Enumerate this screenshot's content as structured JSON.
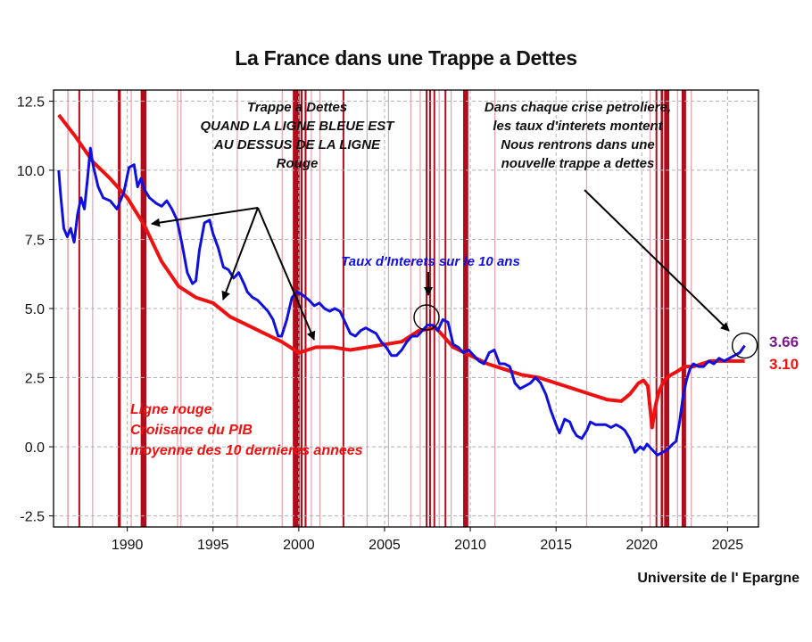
{
  "chart_data": {
    "type": "line",
    "title": "La France dans une Trappe a Dettes",
    "xlabel": "",
    "ylabel": "",
    "xlim": [
      1985.7,
      2026.8
    ],
    "ylim": [
      -2.9,
      12.9
    ],
    "xticks": [
      1990,
      1995,
      2000,
      2005,
      2010,
      2015,
      2020,
      2025
    ],
    "xtick_labels": [
      "1990",
      "1995",
      "2000",
      "2005",
      "2010",
      "2015",
      "2020",
      "2025"
    ],
    "yticks": [
      12.5,
      10.0,
      7.5,
      5.0,
      2.5,
      0.0,
      -2.5
    ],
    "ytick_labels": [
      "12.5",
      "10.0",
      "7.5",
      "5.0",
      "2.5",
      "0.0",
      "-2.5"
    ],
    "grid": true,
    "colors": {
      "interest": "#1010dd",
      "gdp": "#ee1111",
      "shade_dark": "#b00c1c",
      "shade_light": "#e8a0aa",
      "last_interest": "#7a1a8a"
    },
    "series": [
      {
        "name": "Taux d'Interets sur le 10 ans",
        "x": [
          1986.0,
          1986.1,
          1986.3,
          1986.5,
          1986.7,
          1986.9,
          1987.1,
          1987.3,
          1987.5,
          1987.7,
          1987.85,
          1988.0,
          1988.3,
          1988.6,
          1989.0,
          1989.4,
          1989.8,
          1990.1,
          1990.4,
          1990.6,
          1990.8,
          1991.0,
          1991.3,
          1991.7,
          1992.0,
          1992.3,
          1992.6,
          1992.9,
          1993.2,
          1993.5,
          1993.8,
          1994.0,
          1994.2,
          1994.5,
          1994.8,
          1995.0,
          1995.3,
          1995.6,
          1995.9,
          1996.2,
          1996.5,
          1996.8,
          1997.0,
          1997.3,
          1997.6,
          1997.9,
          1998.2,
          1998.5,
          1998.8,
          1999.0,
          1999.3,
          1999.6,
          1999.9,
          2000.2,
          2000.6,
          2000.9,
          2001.2,
          2001.5,
          2001.8,
          2002.1,
          2002.4,
          2002.7,
          2003.0,
          2003.3,
          2003.6,
          2003.9,
          2004.2,
          2004.5,
          2004.8,
          2005.1,
          2005.4,
          2005.7,
          2006.0,
          2006.3,
          2006.6,
          2006.9,
          2007.2,
          2007.5,
          2007.8,
          2008.1,
          2008.4,
          2008.7,
          2009.0,
          2009.3,
          2009.6,
          2009.9,
          2010.2,
          2010.5,
          2010.8,
          2011.1,
          2011.4,
          2011.7,
          2012.0,
          2012.3,
          2012.6,
          2012.9,
          2013.2,
          2013.5,
          2013.8,
          2014.1,
          2014.4,
          2014.7,
          2015.0,
          2015.2,
          2015.5,
          2015.8,
          2016.0,
          2016.2,
          2016.5,
          2016.8,
          2017.0,
          2017.3,
          2017.6,
          2017.9,
          2018.2,
          2018.5,
          2018.8,
          2019.0,
          2019.3,
          2019.6,
          2019.9,
          2020.1,
          2020.3,
          2020.6,
          2020.9,
          2021.2,
          2021.5,
          2021.8,
          2022.0,
          2022.2,
          2022.4,
          2022.6,
          2022.8,
          2023.0,
          2023.3,
          2023.6,
          2023.9,
          2024.2,
          2024.5,
          2024.8,
          2025.1,
          2025.4,
          2025.7,
          2026.0
        ],
        "y": [
          10.0,
          9.2,
          7.9,
          7.6,
          7.9,
          7.4,
          8.4,
          9.0,
          8.6,
          9.8,
          10.8,
          10.2,
          9.4,
          9.0,
          8.9,
          8.6,
          9.2,
          10.1,
          10.2,
          9.4,
          9.7,
          9.3,
          9.0,
          8.8,
          8.7,
          8.9,
          8.6,
          8.2,
          7.3,
          6.3,
          5.9,
          6.0,
          7.1,
          8.1,
          8.2,
          7.7,
          7.2,
          6.5,
          6.4,
          6.1,
          6.3,
          5.9,
          5.6,
          5.4,
          5.3,
          5.1,
          4.9,
          4.6,
          4.0,
          4.0,
          4.6,
          5.4,
          5.6,
          5.5,
          5.3,
          5.1,
          5.2,
          5.0,
          4.9,
          5.0,
          4.9,
          4.5,
          4.1,
          4.0,
          4.2,
          4.3,
          4.2,
          4.1,
          3.8,
          3.6,
          3.3,
          3.3,
          3.5,
          3.8,
          4.0,
          4.0,
          4.2,
          4.4,
          4.4,
          4.2,
          4.6,
          4.5,
          3.7,
          3.6,
          3.4,
          3.5,
          3.3,
          3.1,
          3.0,
          3.4,
          3.5,
          3.0,
          3.0,
          2.9,
          2.3,
          2.1,
          2.2,
          2.3,
          2.5,
          2.3,
          1.9,
          1.3,
          0.8,
          0.5,
          1.0,
          0.9,
          0.6,
          0.4,
          0.3,
          0.6,
          0.9,
          0.8,
          0.8,
          0.8,
          0.7,
          0.8,
          0.7,
          0.6,
          0.3,
          -0.2,
          0.0,
          -0.1,
          0.1,
          -0.1,
          -0.3,
          -0.2,
          -0.1,
          0.1,
          0.2,
          0.9,
          1.8,
          2.4,
          2.8,
          3.0,
          2.9,
          2.9,
          3.1,
          3.0,
          3.2,
          3.1,
          3.2,
          3.3,
          3.4,
          3.66
        ]
      },
      {
        "name": "Ligne rouge",
        "x": [
          1986.0,
          1987.0,
          1988.0,
          1989.0,
          1990.0,
          1991.0,
          1992.0,
          1993.0,
          1994.0,
          1995.0,
          1996.0,
          1997.0,
          1998.0,
          1999.0,
          2000.0,
          2001.0,
          2002.0,
          2003.0,
          2004.0,
          2005.0,
          2006.0,
          2007.0,
          2008.0,
          2009.0,
          2010.0,
          2011.0,
          2012.0,
          2013.0,
          2014.0,
          2015.0,
          2016.0,
          2017.0,
          2018.0,
          2018.8,
          2019.3,
          2019.8,
          2020.1,
          2020.35,
          2020.6,
          2020.8,
          2021.0,
          2021.3,
          2021.7,
          2022.0,
          2022.5,
          2023.0,
          2023.5,
          2024.0,
          2024.5,
          2025.0,
          2025.5,
          2026.0
        ],
        "y": [
          12.0,
          11.2,
          10.3,
          9.7,
          9.0,
          8.0,
          6.7,
          5.8,
          5.4,
          5.2,
          4.7,
          4.4,
          4.1,
          3.8,
          3.4,
          3.6,
          3.6,
          3.5,
          3.6,
          3.7,
          3.8,
          4.2,
          4.3,
          3.6,
          3.3,
          3.0,
          2.8,
          2.6,
          2.5,
          2.3,
          2.1,
          1.9,
          1.7,
          1.65,
          1.9,
          2.3,
          2.4,
          2.2,
          0.7,
          1.5,
          2.0,
          2.4,
          2.6,
          2.7,
          2.9,
          2.9,
          3.0,
          3.1,
          3.1,
          3.1,
          3.1,
          3.1
        ]
      }
    ],
    "crisis_bands_dark": [
      [
        1987.15,
        1987.25
      ],
      [
        1989.45,
        1989.62
      ],
      [
        1990.78,
        1991.12
      ],
      [
        1999.65,
        2000.05
      ],
      [
        2000.1,
        2000.22
      ],
      [
        2000.34,
        2000.45
      ],
      [
        2002.55,
        2002.62
      ],
      [
        2007.4,
        2007.47
      ],
      [
        2007.6,
        2007.65
      ],
      [
        2007.85,
        2007.92
      ],
      [
        2008.5,
        2008.55
      ],
      [
        2009.58,
        2009.88
      ],
      [
        2020.8,
        2020.9
      ],
      [
        2021.1,
        2021.24
      ],
      [
        2021.3,
        2021.6
      ],
      [
        2022.32,
        2022.58
      ]
    ],
    "crisis_bands_light": [
      [
        1986.5,
        1986.58
      ],
      [
        1987.95,
        1988.0
      ],
      [
        1990.2,
        1990.26
      ],
      [
        1992.9,
        1992.95
      ],
      [
        1993.1,
        1993.16
      ],
      [
        1996.38,
        1996.44
      ],
      [
        1999.0,
        1999.06
      ],
      [
        2000.7,
        2000.76
      ],
      [
        2001.2,
        2001.26
      ],
      [
        2003.95,
        2004.01
      ],
      [
        2005.2,
        2005.26
      ],
      [
        2006.5,
        2006.56
      ],
      [
        2007.05,
        2007.11
      ],
      [
        2008.15,
        2008.21
      ],
      [
        2008.85,
        2008.91
      ],
      [
        2011.4,
        2011.46
      ],
      [
        2016.75,
        2016.8
      ],
      [
        2020.45,
        2020.51
      ],
      [
        2022.05,
        2022.1
      ],
      [
        2022.85,
        2022.91
      ]
    ],
    "end_labels": {
      "interest": "3.66",
      "gdp": "3.10"
    },
    "annotations": {
      "trap": [
        "Trappe a Dettes",
        "QUAND LA LIGNE BLEUE EST",
        "AU DESSUS DE LA LIGNE",
        "Rouge"
      ],
      "oil": [
        "Dans chaque crise petroliere,",
        "les taux d'interets montent",
        "Nous rentrons dans une",
        "nouvelle trappe a dettes"
      ],
      "blue_label": "Taux d'Interets sur le 10 ans",
      "red_label": [
        "Ligne rouge",
        "Croiisance du PIB",
        "moyenne des 10 dernieres annees"
      ]
    }
  },
  "credit": "Universite de l' Epargne"
}
